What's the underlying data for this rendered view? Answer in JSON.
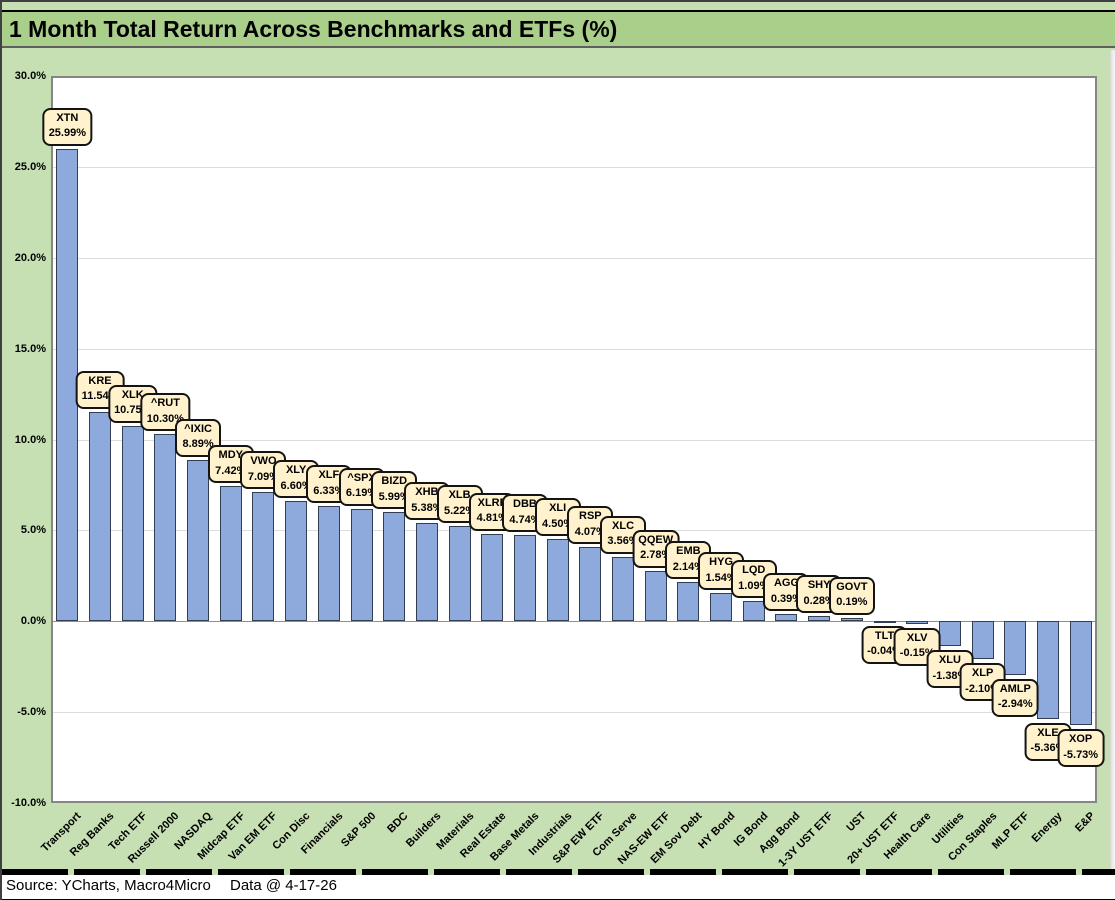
{
  "header": {
    "title": "1 Month Total Return Across Benchmarks and ETFs (%)"
  },
  "chart_data": {
    "type": "bar",
    "title": "1 Month Total Return Across Benchmarks and ETFs (%)",
    "categories": [
      "Transport",
      "Reg Banks",
      "Tech ETF",
      "Russell 2000",
      "NASDAQ",
      "Midcap ETF",
      "Van EM ETF",
      "Con Disc",
      "Financials",
      "S&P 500",
      "BDC",
      "Builders",
      "Materials",
      "Real Estate",
      "Base Metals",
      "Industrials",
      "S&P EW ETF",
      "Com Serve",
      "NAS-EW ETF",
      "EM Sov Debt",
      "HY Bond",
      "IG Bond",
      "Agg Bond",
      "1-3Y UST ETF",
      "UST",
      "20+ UST ETF",
      "Health Care",
      "Utilities",
      "Con Staples",
      "MLP ETF",
      "Energy",
      "E&P"
    ],
    "tickers": [
      "XTN",
      "KRE",
      "XLK",
      "^RUT",
      "^IXIC",
      "MDY",
      "VWO",
      "XLY",
      "XLF",
      "^SPX",
      "BIZD",
      "XHB",
      "XLB",
      "XLRE",
      "DBB",
      "XLI",
      "RSP",
      "XLC",
      "QQEW",
      "EMB",
      "HYG",
      "LQD",
      "AGG",
      "SHY",
      "GOVT",
      "TLT",
      "XLV",
      "XLU",
      "XLP",
      "AMLP",
      "XLE",
      "XOP"
    ],
    "values": [
      25.99,
      11.54,
      10.75,
      10.3,
      8.89,
      7.42,
      7.09,
      6.6,
      6.33,
      6.19,
      5.99,
      5.38,
      5.22,
      4.81,
      4.74,
      4.5,
      4.07,
      3.56,
      2.78,
      2.14,
      1.54,
      1.09,
      0.39,
      0.28,
      0.19,
      -0.04,
      -0.15,
      -1.38,
      -2.1,
      -2.94,
      -5.36,
      -5.73
    ],
    "value_labels": [
      "25.99%",
      "11.54%",
      "10.75%",
      "10.30%",
      "8.89%",
      "7.42%",
      "7.09%",
      "6.60%",
      "6.33%",
      "6.19%",
      "5.99%",
      "5.38%",
      "5.22%",
      "4.81%",
      "4.74%",
      "4.50%",
      "4.07%",
      "3.56%",
      "2.78%",
      "2.14%",
      "1.54%",
      "1.09%",
      "0.39%",
      "0.28%",
      "0.19%",
      "-0.04%",
      "-0.15%",
      "-1.38%",
      "-2.10%",
      "-2.94%",
      "-5.36%",
      "-5.73%"
    ],
    "ylim": [
      -10,
      30
    ],
    "y_ticks": [
      "30.0%",
      "25.0%",
      "20.0%",
      "15.0%",
      "10.0%",
      "5.0%",
      "0.0%",
      "-5.0%",
      "-10.0%"
    ],
    "grid": true,
    "legend": "none",
    "colors": {
      "bar_fill": "#8EA9DB",
      "bar_border": "#333F50",
      "callout_bg": "#FFF2CC",
      "callout_border": "#141414",
      "page_background": "#C6E0B4",
      "title_band": "#A9CF8B",
      "plot_background": "#FFFFFF",
      "gridline": "#DCDCDC"
    }
  },
  "footer": {
    "source": "Source: YCharts, Macro4Micro",
    "data_date": "Data @ 4-17-26"
  }
}
